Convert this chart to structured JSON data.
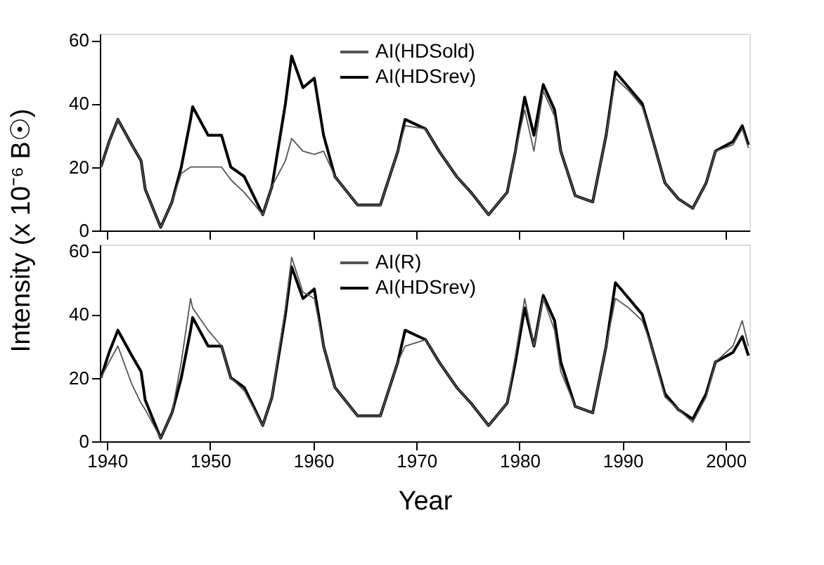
{
  "chart_data": [
    {
      "type": "line",
      "ylabel": "Intensity  (x 10⁻⁶ B☉)",
      "xlim": [
        1939.3,
        2002.3
      ],
      "xticks": [
        1940,
        1950,
        1960,
        1970,
        1980,
        1990,
        2000
      ],
      "ylim": [
        0,
        62
      ],
      "yticks": [
        0,
        20,
        40,
        60
      ],
      "tick_labels": "y",
      "legend": "top",
      "grid": false,
      "x": [
        1939.4,
        1940.2,
        1941.05,
        1942.4,
        1943.3,
        1943.7,
        1945.2,
        1946.3,
        1947.2,
        1948.1,
        1948.3,
        1949.8,
        1951.1,
        1952,
        1953.3,
        1955.1,
        1956,
        1957.3,
        1957.9,
        1959,
        1960.1,
        1961,
        1962.1,
        1964.3,
        1966.5,
        1968.2,
        1968.9,
        1970.9,
        1972.2,
        1973.9,
        1975.3,
        1977,
        1978.8,
        1979.6,
        1980.5,
        1981.4,
        1982.3,
        1983.4,
        1984,
        1985.4,
        1987.1,
        1988.4,
        1989.3,
        1990.6,
        1991.9,
        1992.8,
        1994.1,
        1995.4,
        1996.8,
        1998.1,
        1999,
        2000.7,
        2001.6,
        2002.2
      ],
      "series": [
        {
          "name": "AI(HDSold)",
          "color": "#555555",
          "values": [
            20,
            28,
            35,
            27,
            22,
            13,
            1,
            9,
            18,
            20,
            20,
            20,
            20,
            16,
            12,
            5,
            14,
            22,
            29,
            25,
            24,
            25,
            17,
            8,
            8,
            25,
            33,
            32,
            25,
            17,
            12,
            5,
            12,
            25,
            38,
            25,
            44,
            36,
            25,
            11,
            9,
            30,
            48,
            44,
            39,
            30,
            15,
            10,
            7,
            15,
            25,
            27,
            32,
            26
          ]
        },
        {
          "name": "AI(HDSrev)",
          "color": "#000000",
          "values": [
            20,
            28,
            35,
            27,
            22,
            13,
            1,
            9,
            20,
            35,
            39,
            30,
            30,
            20,
            17,
            5,
            14,
            40,
            55,
            45,
            48,
            30,
            17,
            8,
            8,
            25,
            35,
            32,
            25,
            17,
            12,
            5,
            12,
            25,
            42,
            30,
            46,
            38,
            25,
            11,
            9,
            30,
            50,
            45,
            40,
            30,
            15,
            10,
            7,
            15,
            25,
            28,
            33,
            27
          ]
        }
      ]
    },
    {
      "type": "line",
      "xlabel": "Year",
      "xlim": [
        1939.3,
        2002.3
      ],
      "xticks": [
        1940,
        1950,
        1960,
        1970,
        1980,
        1990,
        2000
      ],
      "ylim": [
        0,
        62
      ],
      "yticks": [
        0,
        20,
        40,
        60
      ],
      "legend": "top",
      "grid": false,
      "x": [
        1939.4,
        1940.2,
        1941.05,
        1942.4,
        1943.3,
        1943.7,
        1945.2,
        1946.3,
        1947.2,
        1948.1,
        1948.3,
        1949.8,
        1951.1,
        1952,
        1953.3,
        1955.1,
        1956,
        1957.3,
        1957.9,
        1959,
        1960.1,
        1961,
        1962.1,
        1964.3,
        1966.5,
        1968.2,
        1968.9,
        1970.9,
        1972.2,
        1973.9,
        1975.3,
        1977,
        1978.8,
        1979.6,
        1980.5,
        1981.4,
        1982.3,
        1983.4,
        1984,
        1985.4,
        1987.1,
        1988.4,
        1989.3,
        1990.6,
        1991.9,
        1992.8,
        1994.1,
        1995.4,
        1996.8,
        1998.1,
        1999,
        2000.7,
        2001.6,
        2002.2
      ],
      "series": [
        {
          "name": "AI(R)",
          "color": "#555555",
          "values": [
            20,
            25,
            30,
            18,
            12,
            10,
            1,
            9,
            25,
            45,
            42,
            35,
            30,
            20,
            16,
            5,
            14,
            42,
            58,
            47,
            45,
            30,
            17,
            8,
            8,
            25,
            30,
            32,
            25,
            17,
            12,
            5,
            12,
            27,
            45,
            30,
            45,
            35,
            22,
            11,
            9,
            30,
            45,
            42,
            38,
            30,
            14,
            10,
            6,
            14,
            25,
            30,
            38,
            30
          ]
        },
        {
          "name": "AI(HDSrev)",
          "color": "#000000",
          "values": [
            20,
            28,
            35,
            27,
            22,
            13,
            1,
            9,
            20,
            35,
            39,
            30,
            30,
            20,
            17,
            5,
            14,
            40,
            55,
            45,
            48,
            30,
            17,
            8,
            8,
            25,
            35,
            32,
            25,
            17,
            12,
            5,
            12,
            25,
            42,
            30,
            46,
            38,
            25,
            11,
            9,
            30,
            50,
            45,
            40,
            30,
            15,
            10,
            7,
            15,
            25,
            28,
            33,
            27
          ]
        }
      ]
    }
  ]
}
